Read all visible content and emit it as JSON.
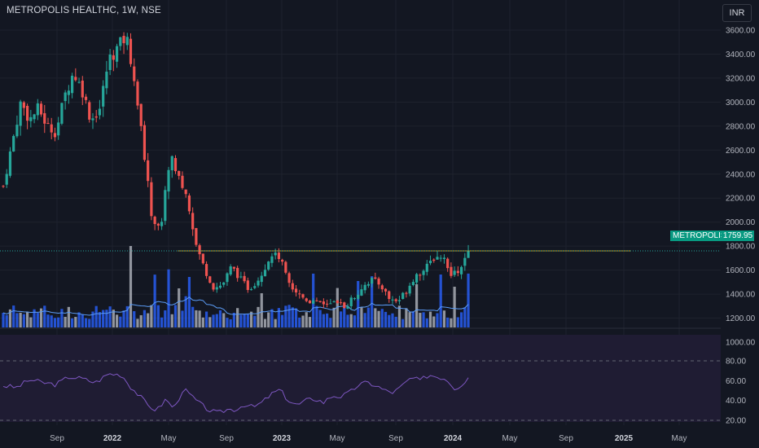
{
  "header": {
    "title": "METROPOLIS HEALTHC, 1W, NSE",
    "currency_button": "INR"
  },
  "price_tag": {
    "label": "METROPOLIS",
    "value": "1759.95"
  },
  "colors": {
    "up": "#26a69a",
    "down": "#ef5350",
    "vol_up": "#2962ff",
    "vol_gray": "#b2b5be",
    "rsi": "#7e57c2",
    "level": "#c9a227"
  },
  "chart_data": [
    {
      "type": "candlestick",
      "title": "METROPOLIS HEALTHC, 1W, NSE",
      "y_ticks": [
        "3600.00",
        "3400.00",
        "3200.00",
        "3000.00",
        "2800.00",
        "2600.00",
        "2400.00",
        "2200.00",
        "2000.00",
        "1800.00",
        "1600.00",
        "1400.00",
        "1200.00",
        "1000.00"
      ],
      "x_ticks": [
        {
          "label": "Sep",
          "bold": false
        },
        {
          "label": "2022",
          "bold": true
        },
        {
          "label": "May",
          "bold": false
        },
        {
          "label": "Sep",
          "bold": false
        },
        {
          "label": "2023",
          "bold": true
        },
        {
          "label": "May",
          "bold": false
        },
        {
          "label": "Sep",
          "bold": false
        },
        {
          "label": "2024",
          "bold": true
        },
        {
          "label": "May",
          "bold": false
        },
        {
          "label": "Sep",
          "bold": false
        },
        {
          "label": "2025",
          "bold": true
        },
        {
          "label": "May",
          "bold": false
        }
      ],
      "ylim": [
        900,
        3700
      ],
      "horizontal_level": 1760,
      "last_price": 1759.95,
      "close_path": [
        [
          0,
          2300
        ],
        [
          4,
          2650
        ],
        [
          8,
          3000
        ],
        [
          12,
          2850
        ],
        [
          16,
          2950
        ],
        [
          20,
          2800
        ],
        [
          24,
          2750
        ],
        [
          28,
          3050
        ],
        [
          32,
          3250
        ],
        [
          36,
          3100
        ],
        [
          40,
          2850
        ],
        [
          44,
          2950
        ],
        [
          48,
          3350
        ],
        [
          52,
          3450
        ],
        [
          56,
          3550
        ],
        [
          60,
          3200
        ],
        [
          64,
          2600
        ],
        [
          68,
          2000
        ],
        [
          72,
          1980
        ],
        [
          76,
          2560
        ],
        [
          80,
          2380
        ],
        [
          84,
          2200
        ],
        [
          88,
          1800
        ],
        [
          92,
          1600
        ],
        [
          96,
          1450
        ],
        [
          100,
          1480
        ],
        [
          104,
          1630
        ],
        [
          108,
          1530
        ],
        [
          112,
          1440
        ],
        [
          116,
          1520
        ],
        [
          120,
          1640
        ],
        [
          124,
          1760
        ],
        [
          128,
          1620
        ],
        [
          132,
          1450
        ],
        [
          136,
          1380
        ],
        [
          140,
          1340
        ],
        [
          144,
          1350
        ],
        [
          148,
          1310
        ],
        [
          152,
          1320
        ],
        [
          156,
          1300
        ],
        [
          160,
          1380
        ],
        [
          164,
          1470
        ],
        [
          168,
          1520
        ],
        [
          172,
          1480
        ],
        [
          176,
          1360
        ],
        [
          180,
          1340
        ],
        [
          184,
          1440
        ],
        [
          188,
          1560
        ],
        [
          192,
          1600
        ],
        [
          196,
          1700
        ],
        [
          200,
          1720
        ],
        [
          204,
          1550
        ],
        [
          208,
          1600
        ],
        [
          212,
          1760
        ]
      ],
      "volume_bars": "weekly traded volume with 20-period moving average",
      "ylabel": "",
      "xlabel": ""
    },
    {
      "type": "line",
      "title": "",
      "y_ticks": [
        "80.00",
        "60.00",
        "40.00",
        "20.00"
      ],
      "ylim": [
        20,
        80
      ],
      "reference_lines": [
        80,
        20
      ],
      "values_path": [
        [
          0,
          55
        ],
        [
          6,
          53
        ],
        [
          12,
          61
        ],
        [
          18,
          58
        ],
        [
          24,
          56
        ],
        [
          30,
          64
        ],
        [
          36,
          62
        ],
        [
          42,
          58
        ],
        [
          48,
          67
        ],
        [
          54,
          66
        ],
        [
          58,
          54
        ],
        [
          62,
          45
        ],
        [
          66,
          35
        ],
        [
          70,
          30
        ],
        [
          74,
          41
        ],
        [
          78,
          32
        ],
        [
          82,
          52
        ],
        [
          86,
          44
        ],
        [
          90,
          36
        ],
        [
          94,
          30
        ],
        [
          98,
          27
        ],
        [
          102,
          31
        ],
        [
          106,
          31
        ],
        [
          110,
          36
        ],
        [
          114,
          33
        ],
        [
          118,
          38
        ],
        [
          122,
          46
        ],
        [
          126,
          51
        ],
        [
          130,
          40
        ],
        [
          134,
          35
        ],
        [
          138,
          40
        ],
        [
          142,
          42
        ],
        [
          146,
          38
        ],
        [
          150,
          45
        ],
        [
          154,
          44
        ],
        [
          158,
          48
        ],
        [
          162,
          56
        ],
        [
          166,
          58
        ],
        [
          170,
          55
        ],
        [
          174,
          50
        ],
        [
          178,
          48
        ],
        [
          182,
          55
        ],
        [
          186,
          63
        ],
        [
          190,
          60
        ],
        [
          194,
          66
        ],
        [
          198,
          64
        ],
        [
          202,
          62
        ],
        [
          206,
          52
        ],
        [
          210,
          58
        ],
        [
          212,
          63
        ]
      ]
    }
  ]
}
